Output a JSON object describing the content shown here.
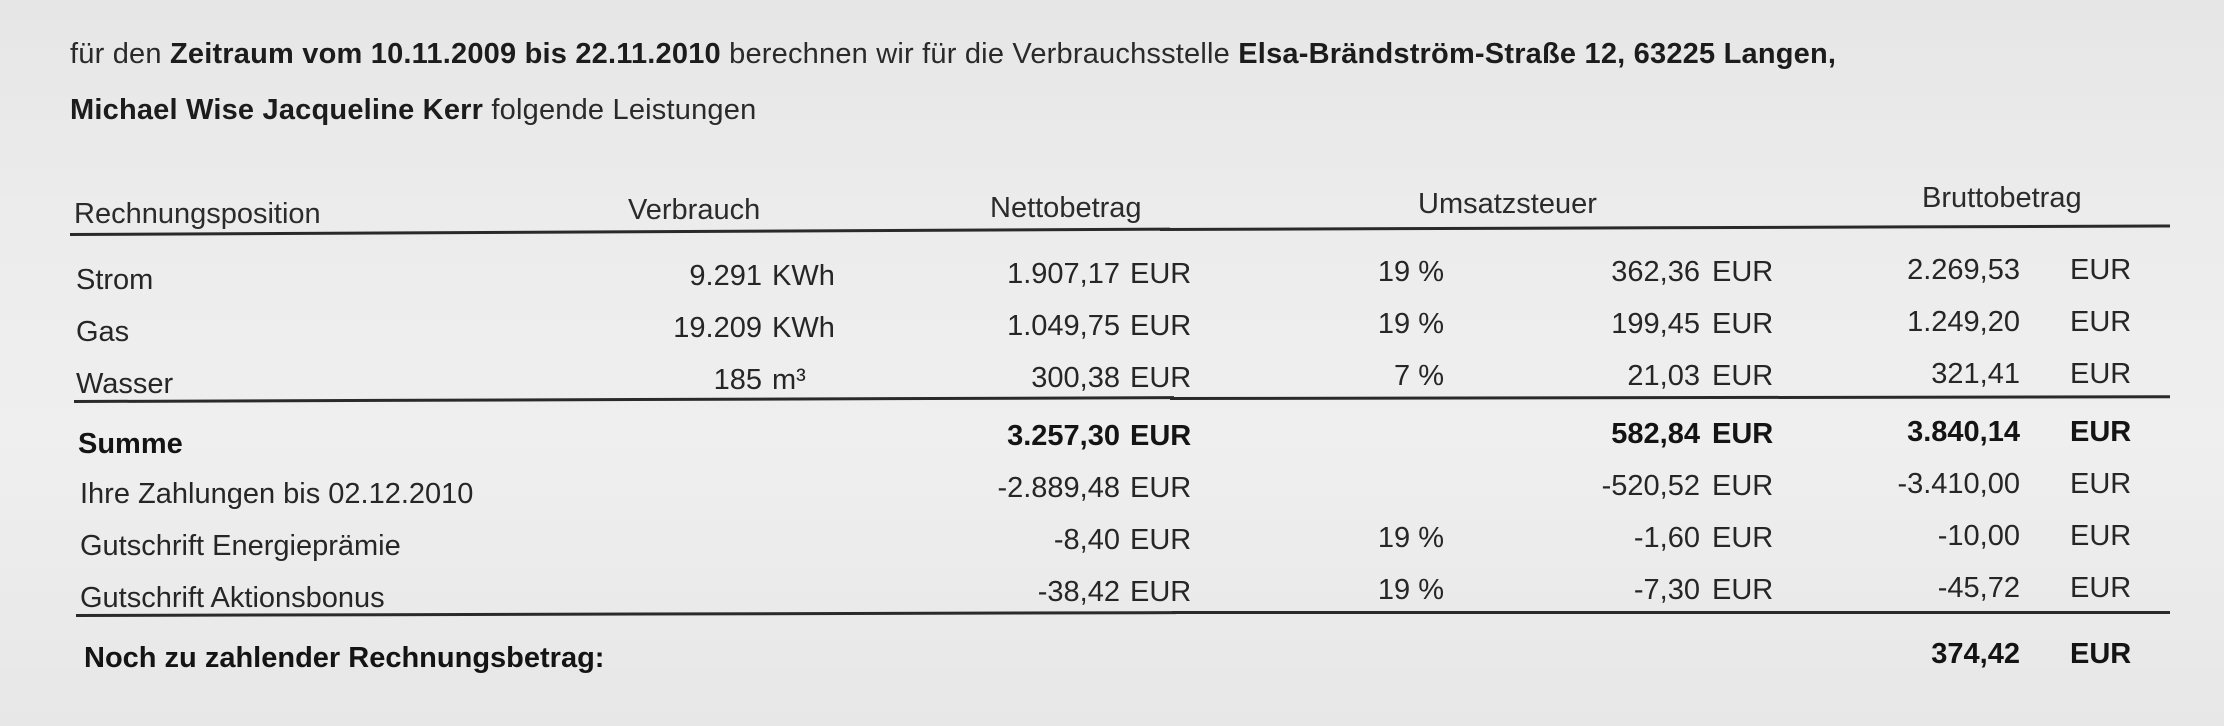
{
  "intro": {
    "t1": "für den ",
    "t2": "Zeitraum vom 10.11.2009 bis 22.11.2010",
    "t3": " berechnen wir für die Verbrauchsstelle ",
    "t4": "Elsa-Brändström-Straße 12, 63225 Langen,",
    "t5": "Michael Wise Jacqueline Kerr",
    "t6": " folgende Leistungen"
  },
  "headers": {
    "position": "Rechnungsposition",
    "consumption": "Verbrauch",
    "net": "Nettobetrag",
    "vat": "Umsatzsteuer",
    "gross": "Bruttobetrag"
  },
  "items": [
    {
      "label": "Strom",
      "qty": "9.291",
      "unit": "KWh",
      "net": "1.907,17",
      "net_cur": "EUR",
      "rate": "19 %",
      "vat": "362,36",
      "vat_cur": "EUR",
      "gross": "2.269,53",
      "gross_cur": "EUR"
    },
    {
      "label": "Gas",
      "qty": "19.209",
      "unit": "KWh",
      "net": "1.049,75",
      "net_cur": "EUR",
      "rate": "19 %",
      "vat": "199,45",
      "vat_cur": "EUR",
      "gross": "1.249,20",
      "gross_cur": "EUR"
    },
    {
      "label": "Wasser",
      "qty": "185",
      "unit": "m³",
      "net": "300,38",
      "net_cur": "EUR",
      "rate": "7 %",
      "vat": "21,03",
      "vat_cur": "EUR",
      "gross": "321,41",
      "gross_cur": "EUR"
    }
  ],
  "sum": {
    "label": "Summe",
    "net": "3.257,30",
    "net_cur": "EUR",
    "vat": "582,84",
    "vat_cur": "EUR",
    "gross": "3.840,14",
    "gross_cur": "EUR"
  },
  "adjustments": [
    {
      "label": "Ihre Zahlungen bis 02.12.2010",
      "net": "-2.889,48",
      "net_cur": "EUR",
      "rate": "",
      "vat": "-520,52",
      "vat_cur": "EUR",
      "gross": "-3.410,00",
      "gross_cur": "EUR"
    },
    {
      "label": "Gutschrift Energieprämie",
      "net": "-8,40",
      "net_cur": "EUR",
      "rate": "19 %",
      "vat": "-1,60",
      "vat_cur": "EUR",
      "gross": "-10,00",
      "gross_cur": "EUR"
    },
    {
      "label": "Gutschrift Aktionsbonus",
      "net": "-38,42",
      "net_cur": "EUR",
      "rate": "19 %",
      "vat": "-7,30",
      "vat_cur": "EUR",
      "gross": "-45,72",
      "gross_cur": "EUR"
    }
  ],
  "total": {
    "label": "Noch zu zahlender Rechnungsbetrag:",
    "gross": "374,42",
    "gross_cur": "EUR"
  }
}
